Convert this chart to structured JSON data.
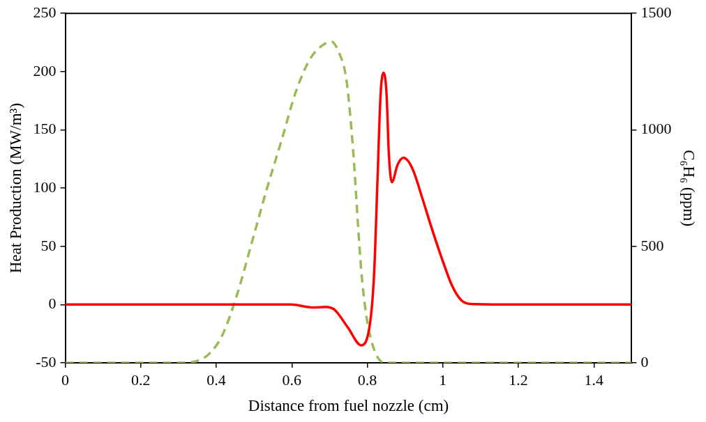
{
  "chart_data": {
    "type": "line",
    "xlabel": "Distance from fuel nozzle (cm)",
    "ylabel": "Heat Production (MW/m³)",
    "y2label": "C₆H₆ (ppm)",
    "xlim": [
      0,
      1.5
    ],
    "xticks": [
      0,
      0.2,
      0.4,
      0.6,
      0.8,
      1,
      1.2,
      1.4
    ],
    "ylim": [
      -50,
      250
    ],
    "yticks": [
      -50,
      0,
      50,
      100,
      150,
      200,
      250
    ],
    "y2lim": [
      0,
      1500
    ],
    "y2ticks": [
      0,
      500,
      1000,
      1500
    ],
    "grid": false,
    "legend": false,
    "marker": "none",
    "series": [
      {
        "color": "#ff0000",
        "line_style": "solid",
        "x": [
          0,
          0.3,
          0.598,
          0.657,
          0.69,
          0.71,
          0.723,
          0.749,
          0.784,
          0.808,
          0.818,
          0.827,
          0.835,
          0.843,
          0.851,
          0.857,
          0.865,
          0.88,
          0.896,
          0.919,
          0.945,
          0.971,
          0.998,
          1.024,
          1.049,
          1.076,
          1.2,
          1.5
        ],
        "values": [
          0,
          0,
          0,
          -2.5,
          -2,
          -3.7,
          -8,
          -20,
          -35,
          -14,
          27,
          108,
          180,
          199,
          180,
          129,
          105,
          120,
          126,
          117,
          92,
          65,
          39,
          16.5,
          3.7,
          0.5,
          0,
          0
        ]
      },
      {
        "color": "#9bbb59",
        "line_style": "dashed",
        "axis": "y2",
        "x": [
          0,
          0.3,
          0.351,
          0.382,
          0.416,
          0.455,
          0.494,
          0.533,
          0.573,
          0.612,
          0.651,
          0.69,
          0.706,
          0.722,
          0.743,
          0.755,
          0.765,
          0.775,
          0.784,
          0.794,
          0.804,
          0.822,
          0.841,
          0.86,
          1.5
        ],
        "values": [
          0,
          0,
          9,
          40,
          119,
          293,
          516,
          742,
          956,
          1170,
          1311,
          1372,
          1378,
          1341,
          1231,
          1057,
          852,
          599,
          394,
          241,
          141,
          40,
          3,
          0,
          0
        ]
      }
    ]
  }
}
